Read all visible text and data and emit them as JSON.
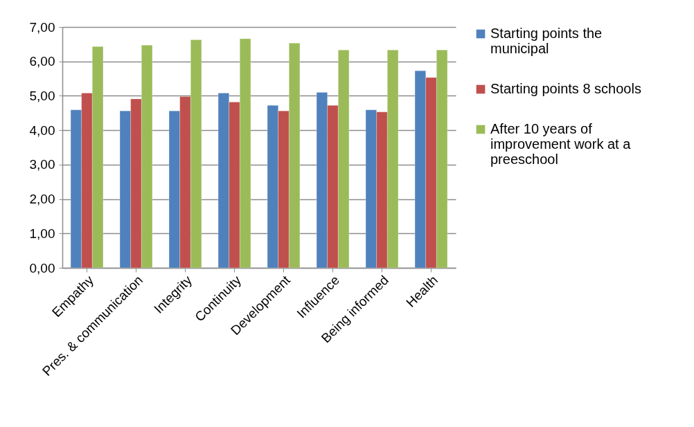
{
  "chart_data": {
    "type": "bar",
    "categories": [
      "Empathy",
      "Pres. & communication",
      "Integrity",
      "Continuity",
      "Development",
      "Influence",
      "Being informed",
      "Health"
    ],
    "series": [
      {
        "name": "Starting points the municipal",
        "color": "#4f81bd",
        "values": [
          4.59,
          4.56,
          4.56,
          5.08,
          4.72,
          5.1,
          4.59,
          5.73
        ]
      },
      {
        "name": "Starting points 8 schools",
        "color": "#c0504d",
        "values": [
          5.08,
          4.91,
          4.98,
          4.82,
          4.56,
          4.72,
          4.53,
          5.53
        ]
      },
      {
        "name": "After 10 years of improvement work at a preeschool",
        "color": "#9bbb59",
        "values": [
          6.43,
          6.47,
          6.63,
          6.66,
          6.53,
          6.33,
          6.33,
          6.33
        ]
      }
    ],
    "ylim": [
      0,
      7
    ],
    "yticks": [
      {
        "value": 0,
        "label": "0,00"
      },
      {
        "value": 1,
        "label": "1,00"
      },
      {
        "value": 2,
        "label": "2,00"
      },
      {
        "value": 3,
        "label": "3,00"
      },
      {
        "value": 4,
        "label": "4,00"
      },
      {
        "value": 5,
        "label": "5,00"
      },
      {
        "value": 6,
        "label": "6,00"
      },
      {
        "value": 7,
        "label": "7,00"
      }
    ],
    "grid": "y",
    "legend": "right"
  }
}
